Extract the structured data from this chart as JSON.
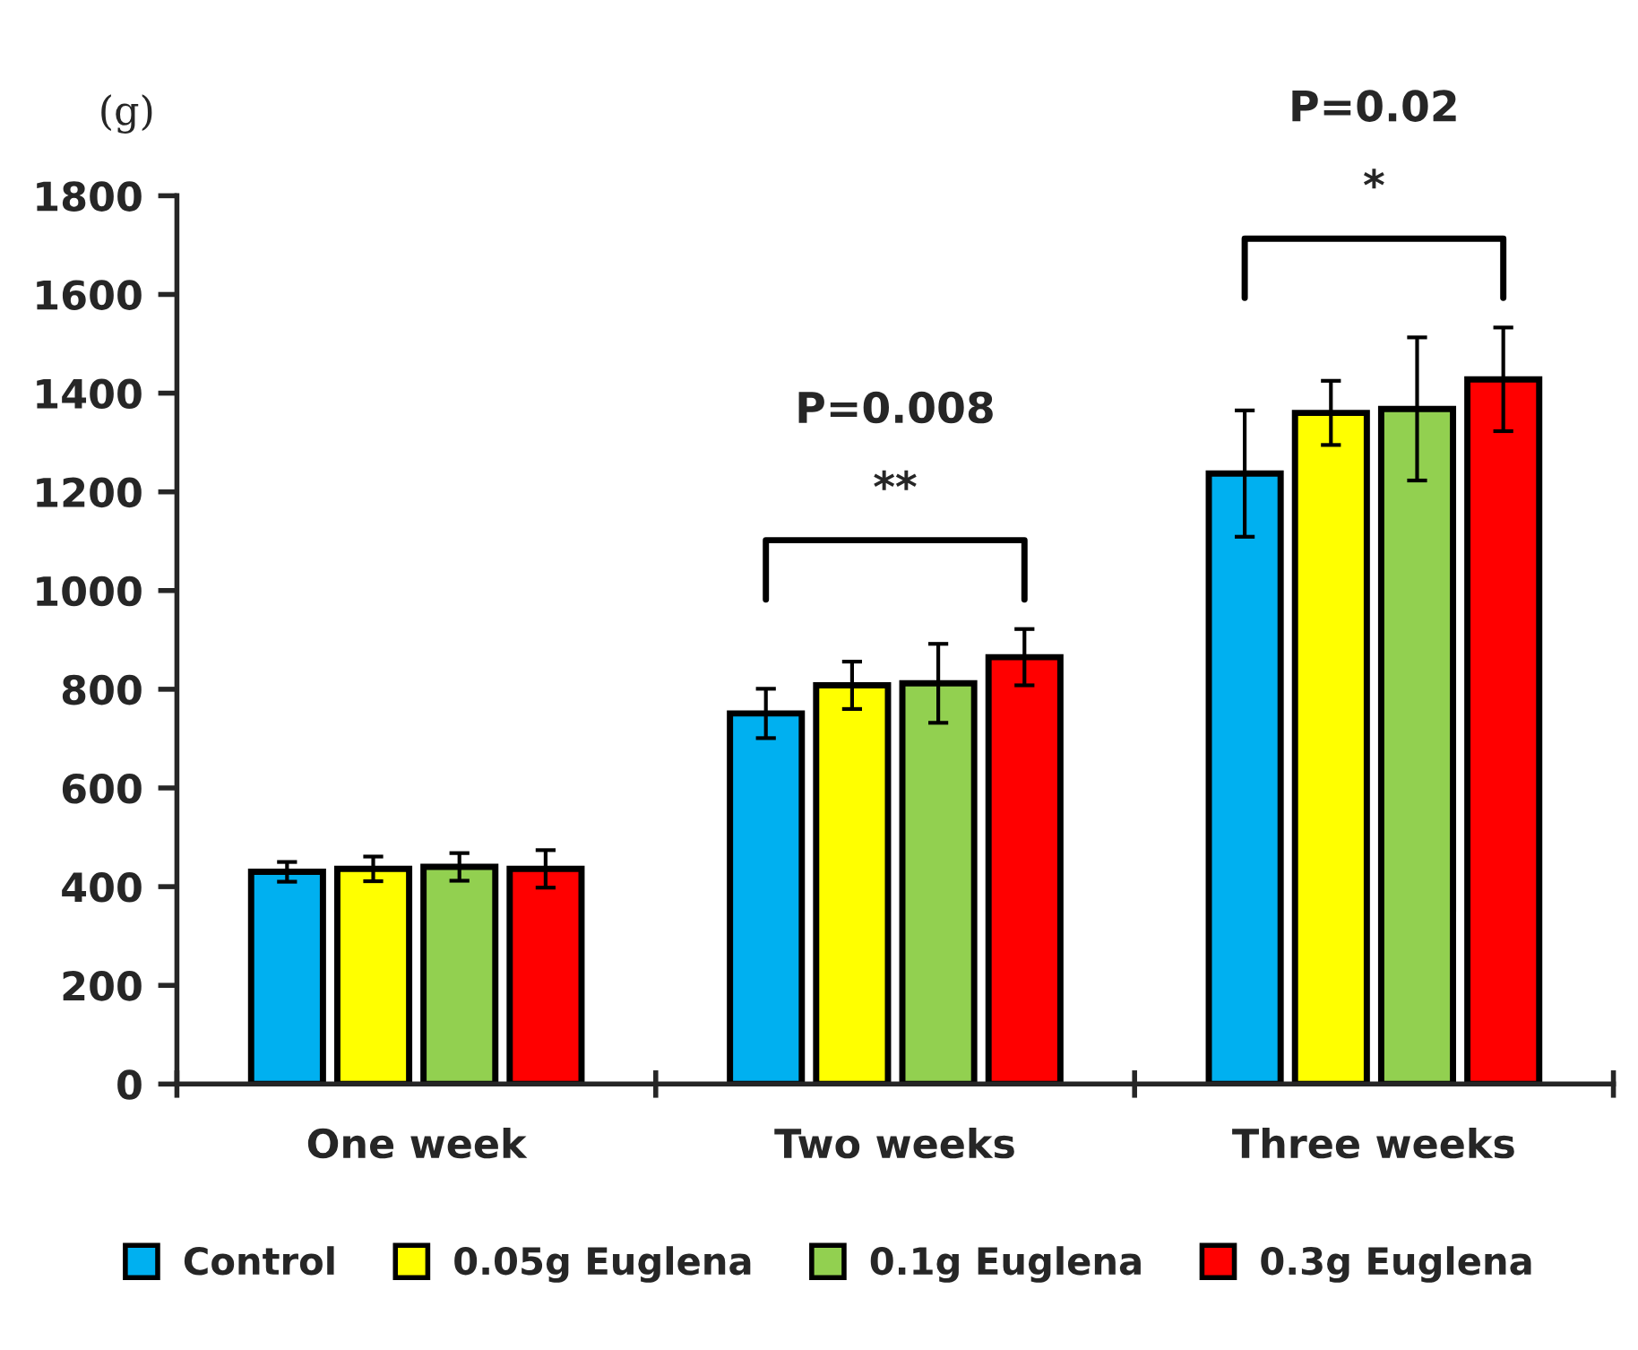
{
  "chart_data": {
    "type": "bar",
    "ylabel": "(g)",
    "categories": [
      "One week",
      "Two weeks",
      "Three weeks"
    ],
    "series": [
      {
        "name": "Control",
        "color": "#00b0f0",
        "values": [
          430,
          751,
          1237
        ],
        "errors": [
          20,
          50,
          128
        ]
      },
      {
        "name": "0.05g Euglena",
        "color": "#ffff00",
        "values": [
          436,
          808,
          1360
        ],
        "errors": [
          25,
          48,
          65
        ]
      },
      {
        "name": "0.1g Euglena",
        "color": "#92d050",
        "values": [
          440,
          812,
          1368
        ],
        "errors": [
          28,
          80,
          145
        ]
      },
      {
        "name": "0.3g Euglena",
        "color": "#ff0000",
        "values": [
          436,
          865,
          1428
        ],
        "errors": [
          38,
          57,
          105
        ]
      }
    ],
    "ylim": [
      0,
      1800
    ],
    "yticks": [
      0,
      200,
      400,
      600,
      800,
      1000,
      1200,
      1400,
      1600,
      1800
    ],
    "grid": false,
    "legend": "bottom",
    "annotations": [
      "P=0.008",
      "**",
      "P=0.02",
      "*"
    ]
  }
}
